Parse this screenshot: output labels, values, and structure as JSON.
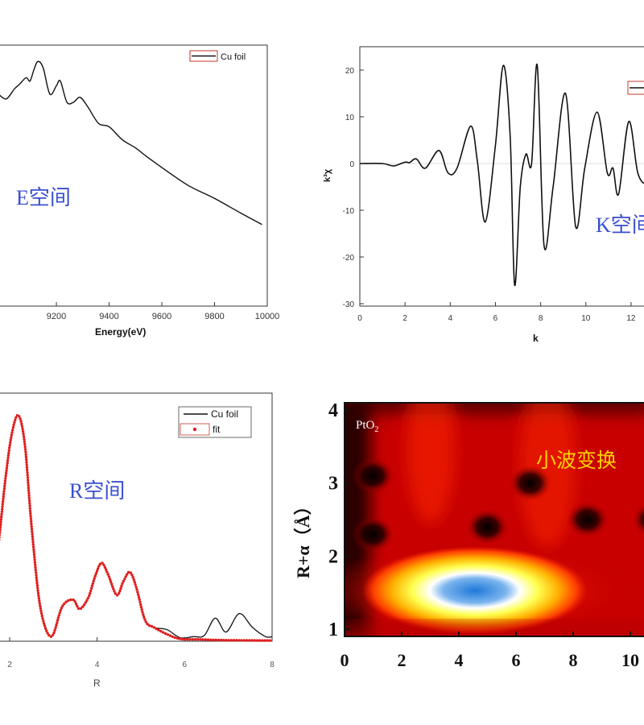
{
  "chart_data": [
    {
      "id": "e_space",
      "type": "line",
      "xlabel": "Energy(eV)",
      "ylabel": "",
      "xlim": [
        8980,
        10000
      ],
      "ylim": [
        0,
        1.6
      ],
      "x_ticks": [
        9200,
        9400,
        9600,
        9800,
        10000
      ],
      "legend": [
        "Cu foil"
      ],
      "legend_position": "top-right",
      "annotation": "E空间",
      "series": [
        {
          "name": "Cu foil",
          "x": [
            8980,
            9010,
            9040,
            9060,
            9085,
            9100,
            9115,
            9130,
            9150,
            9175,
            9200,
            9215,
            9240,
            9265,
            9290,
            9320,
            9360,
            9400,
            9450,
            9500,
            9540,
            9600,
            9700,
            9800,
            9900,
            9980
          ],
          "y": [
            1.3,
            1.27,
            1.33,
            1.36,
            1.4,
            1.38,
            1.45,
            1.5,
            1.46,
            1.3,
            1.35,
            1.38,
            1.25,
            1.25,
            1.28,
            1.22,
            1.12,
            1.1,
            1.02,
            0.97,
            0.92,
            0.85,
            0.74,
            0.66,
            0.57,
            0.5
          ]
        }
      ]
    },
    {
      "id": "k_space",
      "type": "line",
      "xlabel": "k",
      "ylabel": "k³χ",
      "xlim": [
        0,
        13
      ],
      "ylim": [
        -30,
        25
      ],
      "x_ticks": [
        0,
        2,
        4,
        6,
        8,
        10,
        12
      ],
      "y_ticks": [
        -30,
        -20,
        -10,
        0,
        10,
        20
      ],
      "legend_position": "top-right",
      "annotation": "K空间",
      "series": [
        {
          "x": [
            0,
            1,
            1.5,
            2.0,
            2.2,
            2.5,
            2.9,
            3.5,
            3.9,
            4.3,
            4.9,
            5.2,
            5.55,
            6.0,
            6.35,
            6.65,
            6.85,
            7.1,
            7.35,
            7.6,
            7.85,
            8.15,
            8.55,
            9.1,
            9.55,
            9.95,
            10.5,
            10.95,
            11.2,
            11.45,
            11.9,
            12.3,
            12.7,
            13.0
          ],
          "y": [
            0,
            0,
            -0.5,
            0.3,
            0.2,
            1.0,
            -1.0,
            2.8,
            -2.0,
            -1.0,
            8.0,
            0.5,
            -12.5,
            4.0,
            21.0,
            6.0,
            -26.0,
            -5.0,
            2.0,
            0.0,
            21.0,
            -17.5,
            -5.0,
            15.0,
            -13.5,
            -1.0,
            11.0,
            -2.0,
            -1.0,
            -6.5,
            9.0,
            -2.0,
            -4.0,
            1.0
          ]
        }
      ]
    },
    {
      "id": "r_space",
      "type": "line",
      "xlabel": "R",
      "ylabel": "",
      "xlim": [
        1.1,
        8
      ],
      "ylim": [
        0,
        10
      ],
      "x_ticks": [
        2,
        4,
        6,
        8
      ],
      "legend": [
        "Cu foil",
        "fit"
      ],
      "legend_position": "top-right",
      "annotation": "R空间",
      "series": [
        {
          "name": "Cu foil",
          "x": [
            1.1,
            1.3,
            1.5,
            1.7,
            1.9,
            2.05,
            2.2,
            2.35,
            2.5,
            2.7,
            2.95,
            3.2,
            3.45,
            3.6,
            3.8,
            3.95,
            4.1,
            4.25,
            4.45,
            4.6,
            4.75,
            4.9,
            5.1,
            5.3,
            5.6,
            5.9,
            6.2,
            6.45,
            6.7,
            6.95,
            7.25,
            7.55,
            7.85,
            8.0
          ],
          "y": [
            0.2,
            0.6,
            1.5,
            3.5,
            7.0,
            9.0,
            9.8,
            8.5,
            5.0,
            1.5,
            0.2,
            1.5,
            1.8,
            1.4,
            1.9,
            2.8,
            3.4,
            2.9,
            2.0,
            2.6,
            3.0,
            2.3,
            0.9,
            0.6,
            0.5,
            0.15,
            0.2,
            0.25,
            1.0,
            0.4,
            1.2,
            0.6,
            0.2,
            0.2
          ]
        },
        {
          "name": "fit",
          "x": [
            1.1,
            1.3,
            1.5,
            1.7,
            1.9,
            2.05,
            2.2,
            2.35,
            2.5,
            2.7,
            2.95,
            3.2,
            3.45,
            3.6,
            3.8,
            3.95,
            4.1,
            4.25,
            4.45,
            4.6,
            4.75,
            4.9,
            5.1,
            5.3,
            5.6,
            5.9,
            6.3,
            6.8,
            7.3,
            7.8,
            8.0
          ],
          "y": [
            0.2,
            0.6,
            1.5,
            3.5,
            7.0,
            9.0,
            9.8,
            8.5,
            5.0,
            1.5,
            0.2,
            1.5,
            1.8,
            1.4,
            1.9,
            2.8,
            3.4,
            2.9,
            2.0,
            2.6,
            3.0,
            2.3,
            0.9,
            0.6,
            0.3,
            0.1,
            0.08,
            0.05,
            0.04,
            0.03,
            0.03
          ]
        }
      ]
    },
    {
      "id": "wavelet",
      "type": "heatmap",
      "xlabel": "",
      "ylabel": "R+α（Å）",
      "xlim": [
        0,
        12
      ],
      "ylim": [
        0.9,
        4.1
      ],
      "x_ticks": [
        0,
        2,
        4,
        6,
        8,
        10
      ],
      "y_ticks": [
        1,
        2,
        3,
        4
      ],
      "label": "PtO",
      "label_subscript": "2",
      "annotation": "小波变换",
      "colormap": [
        "#000000",
        "#d40000",
        "#ff2a00",
        "#ffa000",
        "#ffff30",
        "#ffffff",
        "#1e78d8"
      ],
      "hotspot": {
        "k": 5.3,
        "r": 1.6
      },
      "dark_spots": [
        {
          "k": 1,
          "r": 3.1
        },
        {
          "k": 1,
          "r": 2.3
        },
        {
          "k": 5,
          "r": 2.4
        },
        {
          "k": 6.5,
          "r": 3.0
        },
        {
          "k": 8.5,
          "r": 2.5
        },
        {
          "k": 10.8,
          "r": 2.5
        }
      ]
    }
  ]
}
